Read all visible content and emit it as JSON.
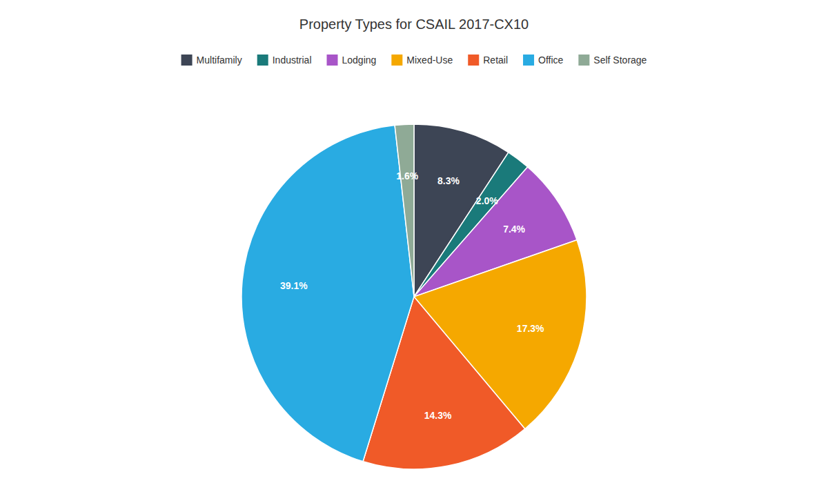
{
  "chart_data": {
    "type": "pie",
    "title": "Property Types for CSAIL 2017-CX10",
    "categories": [
      "Multifamily",
      "Industrial",
      "Lodging",
      "Mixed-Use",
      "Retail",
      "Office",
      "Self Storage"
    ],
    "values": [
      8.3,
      2.0,
      7.4,
      17.3,
      14.3,
      39.1,
      1.6
    ],
    "value_labels": [
      "8.3%",
      "2.0%",
      "7.4%",
      "17.3%",
      "14.3%",
      "39.1%",
      "1.6%"
    ],
    "colors": [
      "#3d4555",
      "#1a7a7a",
      "#a855c8",
      "#f5a800",
      "#f05a28",
      "#29abe2",
      "#8faa96"
    ],
    "data_labels": true,
    "legend": "top"
  }
}
